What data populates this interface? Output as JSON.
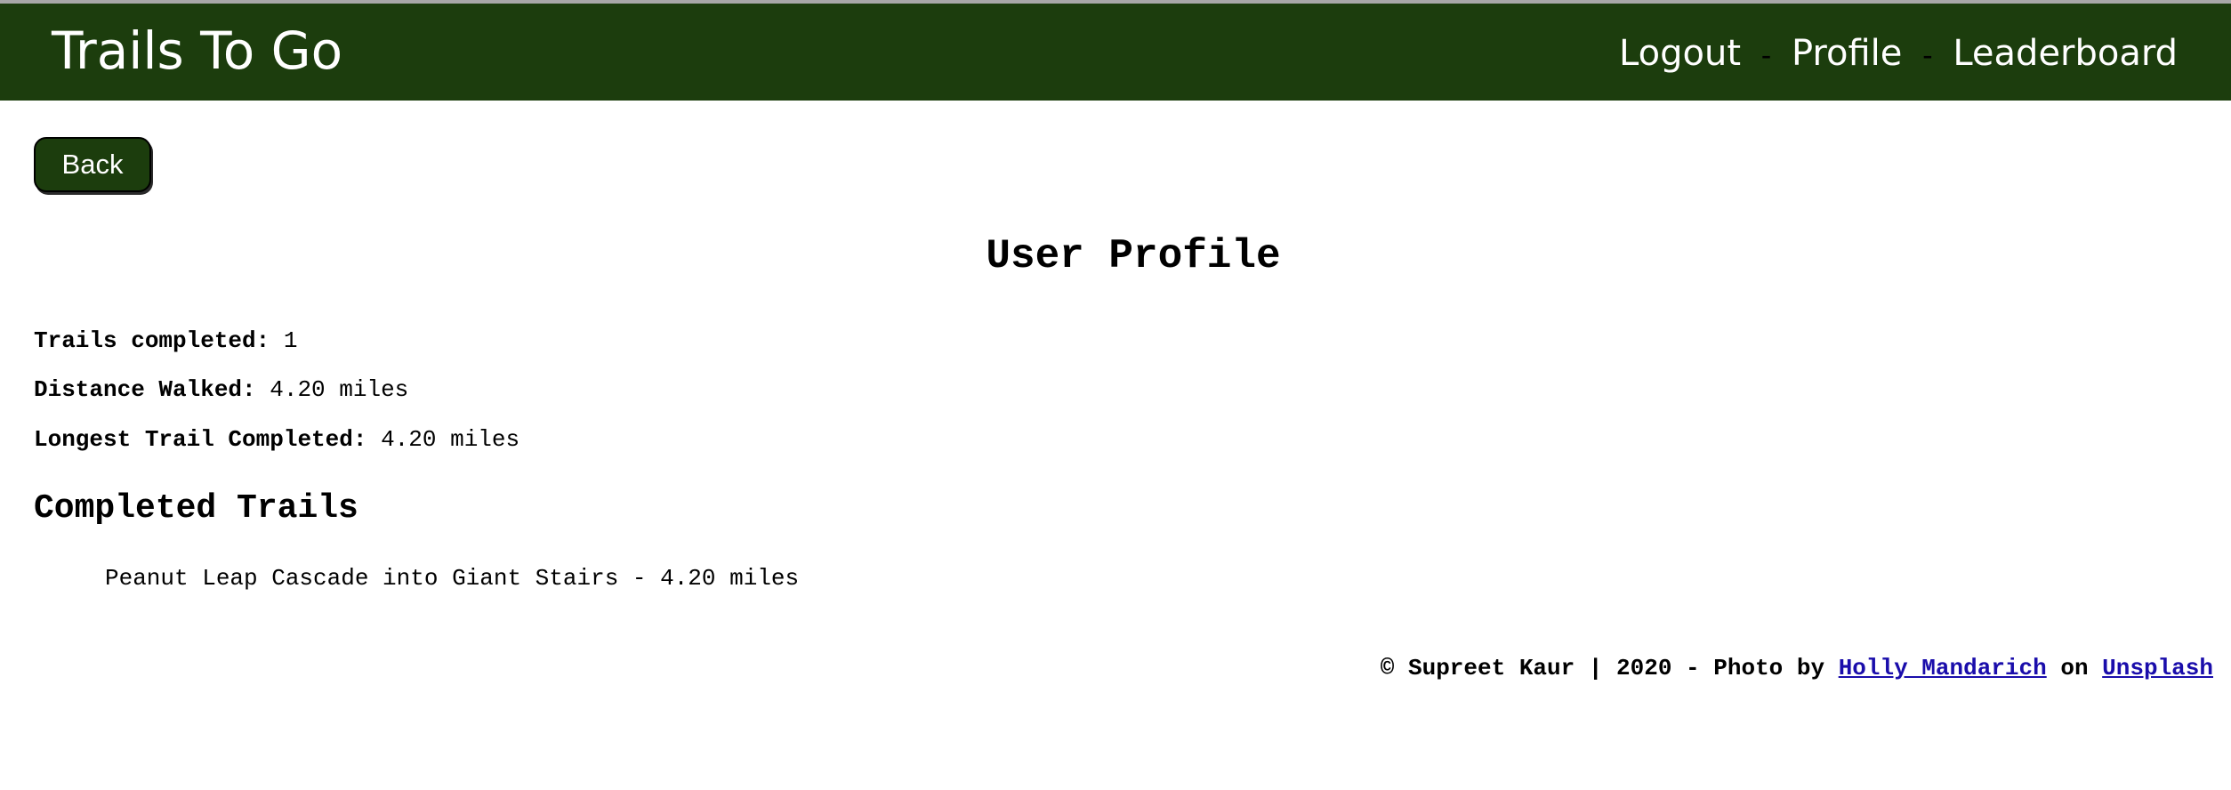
{
  "header": {
    "brand": "Trails To Go",
    "nav": {
      "logout": "Logout",
      "profile": "Profile",
      "leaderboard": "Leaderboard",
      "separator": "-"
    }
  },
  "back_button": {
    "label": "Back"
  },
  "profile": {
    "title": "User Profile",
    "stats": [
      {
        "label": "Trails completed:",
        "value": "1"
      },
      {
        "label": "Distance Walked:",
        "value": "4.20 miles"
      },
      {
        "label": "Longest Trail Completed:",
        "value": "4.20 miles"
      }
    ]
  },
  "completed": {
    "title": "Completed Trails",
    "items": [
      "Peanut Leap Cascade into Giant Stairs - 4.20 miles"
    ]
  },
  "footer": {
    "prefix": "© Supreet Kaur | 2020 - Photo by",
    "photographer": "Holly Mandarich",
    "on": "on",
    "source": "Unsplash"
  },
  "colors": {
    "navbar": "#1c3d0d",
    "link": "#1a0dab"
  }
}
